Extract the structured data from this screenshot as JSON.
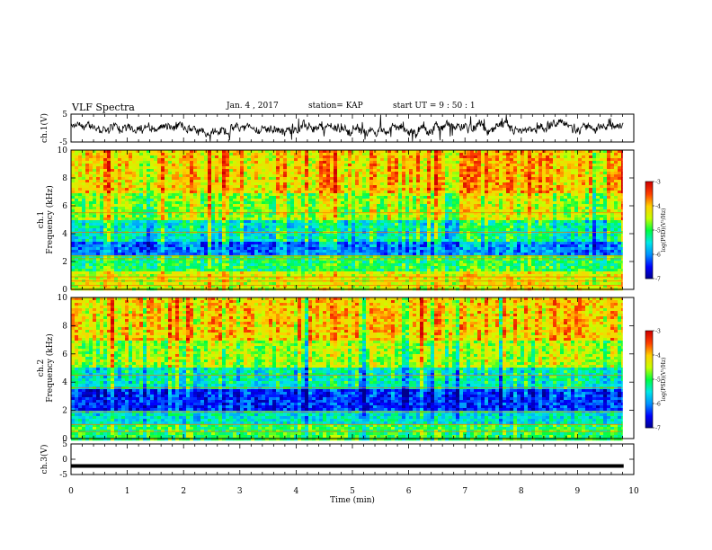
{
  "header": {
    "title": "VLF Spectra",
    "date": "Jan. 4 , 2017",
    "station": "station= KAP",
    "start": "start UT =  9 : 50 : 1"
  },
  "colors": {
    "waveform": "#000000",
    "background": "#ffffff",
    "colormap": [
      "#00008c",
      "#0000ff",
      "#0090ff",
      "#00e8e8",
      "#00ff40",
      "#c8ff00",
      "#ffd000",
      "#ff4000",
      "#d00000"
    ]
  },
  "chart_data": [
    {
      "type": "line",
      "id": "ch1-waveform",
      "ylabel": "ch.1(V)",
      "ylim": [
        -5,
        5
      ],
      "yticks": [
        "5",
        "-5"
      ],
      "xlim": [
        0,
        10
      ],
      "trace": "noisy waveform oscillating roughly between -3 and 3 V over 0-9.8 min"
    },
    {
      "type": "heatmap",
      "id": "ch1-spectrogram",
      "ylabel": "ch.1 Frequency (kHz)",
      "ylim": [
        0,
        10
      ],
      "yticks": [
        "0",
        "2",
        "4",
        "6",
        "8",
        "10"
      ],
      "xlim": [
        0,
        9.8
      ],
      "colorbar": {
        "label": "log(PSD)(V²/Hz)",
        "range": [
          -7,
          -3
        ],
        "ticks": [
          "-3",
          "-4",
          "-5",
          "-6",
          "-7"
        ]
      },
      "bands_khz": [
        {
          "from": 0,
          "to": 1.2,
          "level": -4.3
        },
        {
          "from": 1.2,
          "to": 2.5,
          "level": -5.0
        },
        {
          "from": 2.5,
          "to": 3.5,
          "level": -6.0
        },
        {
          "from": 3.5,
          "to": 5.0,
          "level": -5.3
        },
        {
          "from": 5.0,
          "to": 7.0,
          "level": -4.5
        },
        {
          "from": 7.0,
          "to": 10.0,
          "level": -4.0
        }
      ],
      "lines_khz": [
        0.3,
        0.6,
        0.9,
        2.2,
        2.4,
        4.1,
        5.5
      ]
    },
    {
      "type": "heatmap",
      "id": "ch2-spectrogram",
      "ylabel": "ch.2 Frequency (kHz)",
      "ylim": [
        0,
        10
      ],
      "yticks": [
        "0",
        "2",
        "4",
        "6",
        "8",
        "10"
      ],
      "xlim": [
        0,
        9.8
      ],
      "colorbar": {
        "label": "log(PSD)(V²/Hz)",
        "range": [
          -7,
          -3
        ],
        "ticks": [
          "-3",
          "-4",
          "-5",
          "-6",
          "-7"
        ]
      },
      "bands_khz": [
        {
          "from": 0,
          "to": 1.0,
          "level": -5.0
        },
        {
          "from": 1.0,
          "to": 2.0,
          "level": -5.5
        },
        {
          "from": 2.0,
          "to": 3.5,
          "level": -6.4
        },
        {
          "from": 3.5,
          "to": 5.0,
          "level": -5.4
        },
        {
          "from": 5.0,
          "to": 7.0,
          "level": -4.6
        },
        {
          "from": 7.0,
          "to": 10.0,
          "level": -4.1
        }
      ],
      "lines_khz": [
        0.5,
        1.0,
        1.9,
        3.6,
        4.5
      ]
    },
    {
      "type": "line",
      "id": "ch3-waveform",
      "ylabel": "ch.3(V)",
      "ylim": [
        -5,
        5
      ],
      "yticks": [
        "5",
        "0",
        "-5"
      ],
      "xlim": [
        0,
        10
      ],
      "constant_value": -2.2
    }
  ],
  "xaxis": {
    "label": "Time (min)",
    "range": [
      0,
      10
    ],
    "ticks": [
      "0",
      "1",
      "2",
      "3",
      "4",
      "5",
      "6",
      "7",
      "8",
      "9",
      "10"
    ]
  }
}
